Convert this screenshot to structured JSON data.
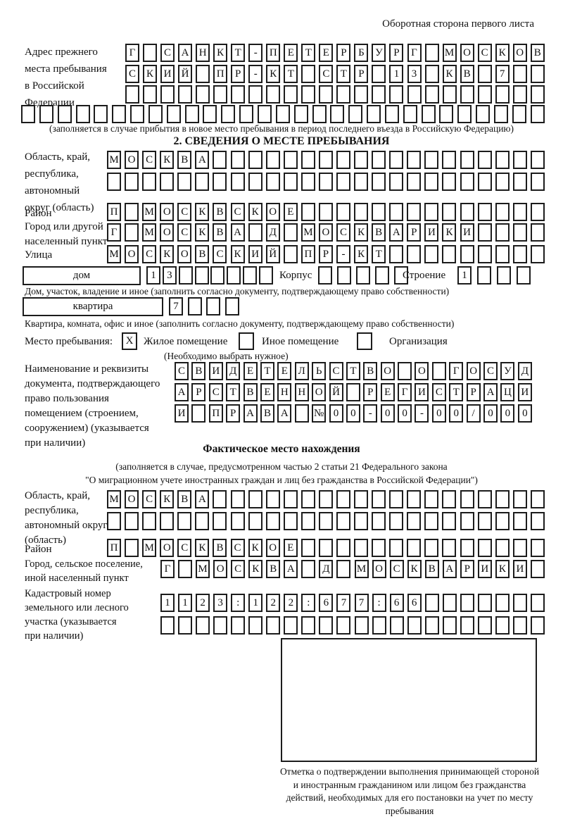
{
  "page": {
    "header_note": "Оборотная сторона первого листа"
  },
  "prev_address": {
    "label_lines": [
      "Адрес прежнего",
      "места пребывания",
      "в Российской",
      "Федерации"
    ],
    "row1": [
      "Г",
      "",
      "С",
      "А",
      "Н",
      "К",
      "Т",
      "-",
      "П",
      "Е",
      "Т",
      "Е",
      "Р",
      "Б",
      "У",
      "Р",
      "Г",
      "",
      "М",
      "О",
      "С",
      "К",
      "О",
      "В"
    ],
    "row2": [
      "С",
      "К",
      "И",
      "Й",
      "",
      "П",
      "Р",
      "-",
      "К",
      "Т",
      "",
      "С",
      "Т",
      "Р",
      "",
      "1",
      "3",
      "",
      "К",
      "В",
      "",
      "7",
      "",
      ""
    ],
    "row3": [
      "",
      "",
      "",
      "",
      "",
      "",
      "",
      "",
      "",
      "",
      "",
      "",
      "",
      "",
      "",
      "",
      "",
      "",
      "",
      "",
      "",
      "",
      "",
      ""
    ],
    "row4": [
      "",
      "",
      "",
      "",
      "",
      "",
      "",
      "",
      "",
      "",
      "",
      "",
      "",
      "",
      "",
      "",
      "",
      "",
      "",
      "",
      "",
      "",
      "",
      "",
      "",
      "",
      "",
      "",
      ""
    ],
    "caption": "(заполняется в случае прибытия в новое место пребывания в период последнего въезда в Российскую Федерацию)"
  },
  "section2": {
    "title": "2. СВЕДЕНИЯ О МЕСТЕ ПРЕБЫВАНИЯ",
    "region": {
      "label_lines": [
        "Область, край,",
        "республика,",
        "автономный",
        "округ (область)"
      ],
      "row1": [
        "М",
        "О",
        "С",
        "К",
        "В",
        "А",
        "",
        "",
        "",
        "",
        "",
        "",
        "",
        "",
        "",
        "",
        "",
        "",
        "",
        "",
        "",
        "",
        "",
        "",
        ""
      ],
      "row2": [
        "",
        "",
        "",
        "",
        "",
        "",
        "",
        "",
        "",
        "",
        "",
        "",
        "",
        "",
        "",
        "",
        "",
        "",
        "",
        "",
        "",
        "",
        "",
        "",
        ""
      ]
    },
    "district": {
      "label": "Район",
      "row": [
        "П",
        "",
        "М",
        "О",
        "С",
        "К",
        "В",
        "С",
        "К",
        "О",
        "Е",
        "",
        "",
        "",
        "",
        "",
        "",
        "",
        "",
        "",
        "",
        "",
        "",
        "",
        ""
      ]
    },
    "city": {
      "label_lines": [
        "Город или другой",
        "населенный пункт"
      ],
      "row": [
        "Г",
        "",
        "М",
        "О",
        "С",
        "К",
        "В",
        "А",
        "",
        "Д",
        "",
        "М",
        "О",
        "С",
        "К",
        "В",
        "А",
        "Р",
        "И",
        "К",
        "И",
        "",
        "",
        "",
        ""
      ]
    },
    "street": {
      "label": "Улица",
      "row": [
        "М",
        "О",
        "С",
        "К",
        "О",
        "В",
        "С",
        "К",
        "И",
        "Й",
        "",
        "П",
        "Р",
        "-",
        "К",
        "Т",
        "",
        "",
        "",
        "",
        "",
        "",
        "",
        "",
        ""
      ]
    },
    "house": {
      "box_label": "дом",
      "boxes": [
        "1",
        "3",
        "",
        "",
        "",
        "",
        "",
        ""
      ],
      "korpus_label": "Корпус",
      "korpus_boxes": [
        "",
        "",
        "",
        "",
        ""
      ],
      "stroenie_label": "Строение",
      "stroenie_boxes": [
        "1",
        "",
        "",
        ""
      ],
      "caption": "Дом, участок, владение и иное (заполнить согласно документу, подтверждающему право собственности)"
    },
    "apartment": {
      "box_label": "квартира",
      "boxes": [
        "7",
        "",
        "",
        ""
      ],
      "caption": "Квартира, комната, офис и иное (заполнить согласно документу, подтверждающему право собственности)"
    },
    "stay_type": {
      "label": "Место пребывания:",
      "checkboxes": [
        "X",
        "",
        ""
      ],
      "options": [
        "Жилое помещение",
        "Иное помещение",
        "Организация"
      ],
      "note": "(Необходимо выбрать нужное)"
    },
    "document": {
      "label_lines": [
        "Наименование и реквизиты",
        "документа, подтверждающего",
        "право пользования",
        "помещением (строением,",
        "сооружением) (указывается",
        "при наличии)"
      ],
      "row1": [
        "С",
        "В",
        "И",
        "Д",
        "Е",
        "Т",
        "Е",
        "Л",
        "Ь",
        "С",
        "Т",
        "В",
        "О",
        "",
        "О",
        "",
        "Г",
        "О",
        "С",
        "У",
        "Д"
      ],
      "row2": [
        "А",
        "Р",
        "С",
        "Т",
        "В",
        "Е",
        "Н",
        "Н",
        "О",
        "Й",
        "",
        "Р",
        "Е",
        "Г",
        "И",
        "С",
        "Т",
        "Р",
        "А",
        "Ц",
        "И"
      ],
      "row3": [
        "И",
        "",
        "П",
        "Р",
        "А",
        "В",
        "А",
        "",
        "№",
        "0",
        "0",
        "-",
        "0",
        "0",
        "-",
        "0",
        "0",
        "/",
        "0",
        "0",
        "0"
      ]
    }
  },
  "actual_location": {
    "title": "Фактическое место нахождения",
    "caption_lines": [
      "(заполняется в случае, предусмотренном частью 2 статьи 21 Федерального закона",
      "\"О миграционном учете иностранных граждан и лиц без гражданства в Российской Федерации\")"
    ],
    "region": {
      "label_lines": [
        "Область, край,",
        "республика,",
        "автономный округ",
        "(область)"
      ],
      "row1": [
        "М",
        "О",
        "С",
        "К",
        "В",
        "А",
        "",
        "",
        "",
        "",
        "",
        "",
        "",
        "",
        "",
        "",
        "",
        "",
        "",
        "",
        "",
        "",
        "",
        "",
        ""
      ],
      "row2": [
        "",
        "",
        "",
        "",
        "",
        "",
        "",
        "",
        "",
        "",
        "",
        "",
        "",
        "",
        "",
        "",
        "",
        "",
        "",
        "",
        "",
        "",
        "",
        "",
        ""
      ]
    },
    "district": {
      "label": "Район",
      "row": [
        "П",
        "",
        "М",
        "О",
        "С",
        "К",
        "В",
        "С",
        "К",
        "О",
        "Е",
        "",
        "",
        "",
        "",
        "",
        "",
        "",
        "",
        "",
        "",
        "",
        "",
        "",
        ""
      ]
    },
    "city": {
      "label_lines": [
        "Город, сельское поселение,",
        "иной населенный пункт"
      ],
      "row": [
        "Г",
        "",
        "М",
        "О",
        "С",
        "К",
        "В",
        "А",
        "",
        "Д",
        "",
        "М",
        "О",
        "С",
        "К",
        "В",
        "А",
        "Р",
        "И",
        "К",
        "И",
        ""
      ]
    },
    "cadastral": {
      "label_lines": [
        "Кадастровый номер",
        "земельного или лесного",
        "участка (указывается",
        "при наличии)"
      ],
      "row1": [
        "1",
        "1",
        "2",
        "3",
        ":",
        "1",
        "2",
        "2",
        ":",
        "6",
        "7",
        "7",
        ":",
        "6",
        "6",
        "",
        "",
        "",
        "",
        "",
        "",
        ""
      ],
      "row2": [
        "",
        "",
        "",
        "",
        "",
        "",
        "",
        "",
        "",
        "",
        "",
        "",
        "",
        "",
        "",
        "",
        "",
        "",
        "",
        "",
        "",
        ""
      ]
    },
    "mark_caption": "Отметка о подтверждении выполнения принимающей стороной и иностранным гражданином или лицом без гражданства действий, необходимых для его постановки на учет по месту пребывания"
  }
}
